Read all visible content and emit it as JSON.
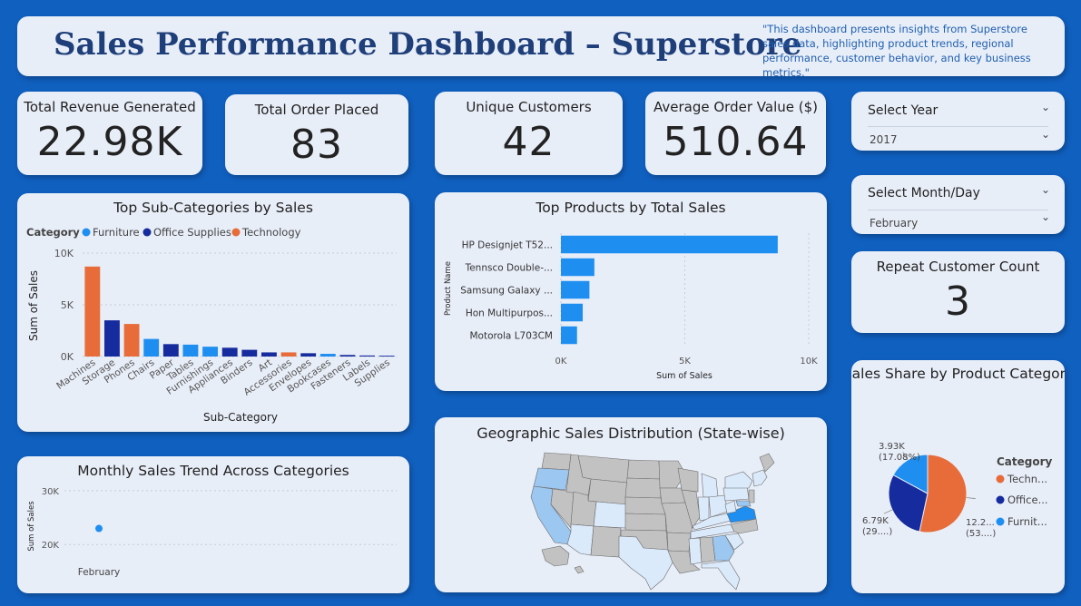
{
  "header": {
    "title": "Sales Performance Dashboard – Superstore",
    "description": "\"This dashboard presents insights from Superstore sales data, highlighting product trends, regional performance, customer behavior, and key business metrics.\""
  },
  "kpis": {
    "revenue": {
      "label": "Total Revenue Generated",
      "value": "22.98K"
    },
    "orders": {
      "label": "Total Order Placed",
      "value": "83"
    },
    "customers": {
      "label": "Unique Customers",
      "value": "42"
    },
    "aov": {
      "label": "Average Order Value ($)",
      "value": "510.64"
    },
    "repeat": {
      "label": "Repeat Customer Count",
      "value": "3"
    }
  },
  "slicers": {
    "year": {
      "label": "Select Year",
      "value": "2017"
    },
    "month": {
      "label": "Select Month/Day",
      "value": "February"
    }
  },
  "colors": {
    "background": "#1060c0",
    "card": "#e8eef8",
    "title": "#1f3f7a",
    "furniture": "#1f8ef1",
    "office_supplies": "#152b9e",
    "technology": "#e86c3a",
    "map_default": "#c2c2c2",
    "map_low": "#dbeafb",
    "map_mid": "#9cc7f0",
    "map_high": "#1f8ef1"
  },
  "chart_data": [
    {
      "type": "bar",
      "title": "Top Sub-Categories by Sales",
      "legend_title": "Category",
      "legend": [
        "Furniture",
        "Office Supplies",
        "Technology"
      ],
      "xlabel": "Sub-Category",
      "ylabel": "Sum of Sales",
      "yticks": [
        "0K",
        "5K",
        "10K"
      ],
      "ylim": [
        0,
        10000
      ],
      "categories": [
        "Machines",
        "Storage",
        "Phones",
        "Chairs",
        "Paper",
        "Tables",
        "Furnishings",
        "Appliances",
        "Binders",
        "Art",
        "Accessories",
        "Envelopes",
        "Bookcases",
        "Fasteners",
        "Labels",
        "Supplies"
      ],
      "values": [
        8700,
        3500,
        3150,
        1700,
        1200,
        1150,
        950,
        850,
        650,
        400,
        400,
        320,
        260,
        150,
        100,
        80
      ],
      "category_group": [
        "Technology",
        "Office Supplies",
        "Technology",
        "Furniture",
        "Office Supplies",
        "Furniture",
        "Furniture",
        "Office Supplies",
        "Office Supplies",
        "Office Supplies",
        "Technology",
        "Office Supplies",
        "Furniture",
        "Office Supplies",
        "Office Supplies",
        "Office Supplies"
      ],
      "grid": true,
      "legend_position": "top-left"
    },
    {
      "type": "bar",
      "orientation": "horizontal",
      "title": "Top Products by Total Sales",
      "xlabel": "Sum of Sales",
      "ylabel": "Product Name",
      "xticks": [
        "0K",
        "5K",
        "10K"
      ],
      "xlim": [
        0,
        10000
      ],
      "categories": [
        "HP Designjet T52...",
        "Tennsco Double-...",
        "Samsung Galaxy ...",
        "Hon Multipurpos...",
        "Motorola L703CM"
      ],
      "values": [
        8750,
        1350,
        1150,
        880,
        650
      ],
      "grid": true
    },
    {
      "type": "scatter",
      "title": "Monthly Sales Trend Across Categories",
      "ylabel": "Sum of Sales",
      "yticks": [
        "20K",
        "30K"
      ],
      "ylim": [
        17000,
        31000
      ],
      "categories": [
        "February"
      ],
      "values": [
        22980
      ],
      "grid": true
    },
    {
      "type": "pie",
      "title": "Sales Share by Product Category",
      "legend_title": "Category",
      "legend": [
        "Techn...",
        "Office...",
        "Furnit..."
      ],
      "slices": [
        {
          "name": "Technology",
          "value": 12260,
          "label1": "12.2...",
          "label2": "(53....)"
        },
        {
          "name": "Office Supplies",
          "value": 6790,
          "label1": "6.79K",
          "label2": "(29....)"
        },
        {
          "name": "Furniture",
          "value": 3930,
          "label1": "3.93K",
          "label2": "(17.08%)"
        }
      ],
      "legend_position": "right"
    }
  ],
  "map": {
    "title": "Geographic Sales Distribution (State-wise)"
  }
}
